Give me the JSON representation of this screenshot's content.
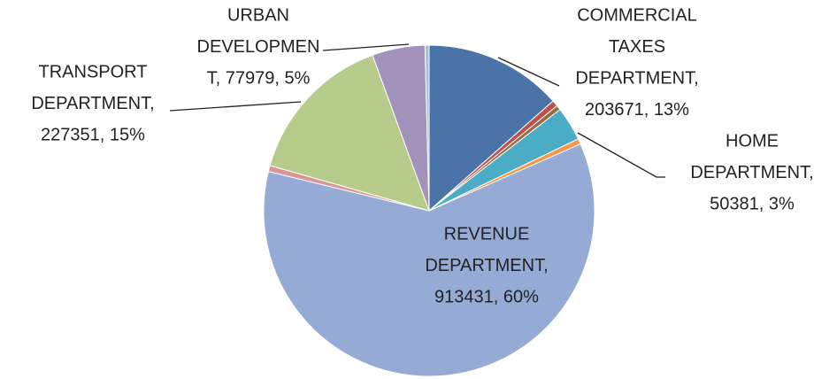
{
  "chart_data": {
    "type": "pie",
    "values": [
      203671,
      9000,
      7000,
      50381,
      8000,
      913431,
      9000,
      227351,
      77979,
      6000
    ],
    "value_labels": [
      [
        "COMMERCIAL",
        "TAXES",
        "DEPARTMENT,",
        "203671, 13%"
      ],
      null,
      null,
      [
        "HOME",
        "DEPARTMENT,",
        "50381, 3%"
      ],
      null,
      [
        "REVENUE",
        "DEPARTMENT,",
        "913431, 60%"
      ],
      null,
      [
        "TRANSPORT",
        "DEPARTMENT,",
        "227351, 15%"
      ],
      [
        "URBAN",
        "DEVELOPMEN",
        "T, 77979, 5%"
      ],
      null
    ],
    "colors": [
      "#4a73a8",
      "#c0504d",
      "#9b6a3d",
      "#4bacc6",
      "#f79646",
      "#95aad4",
      "#d99694",
      "#b7cc8a",
      "#a393bc",
      "#9dc3e6"
    ]
  }
}
